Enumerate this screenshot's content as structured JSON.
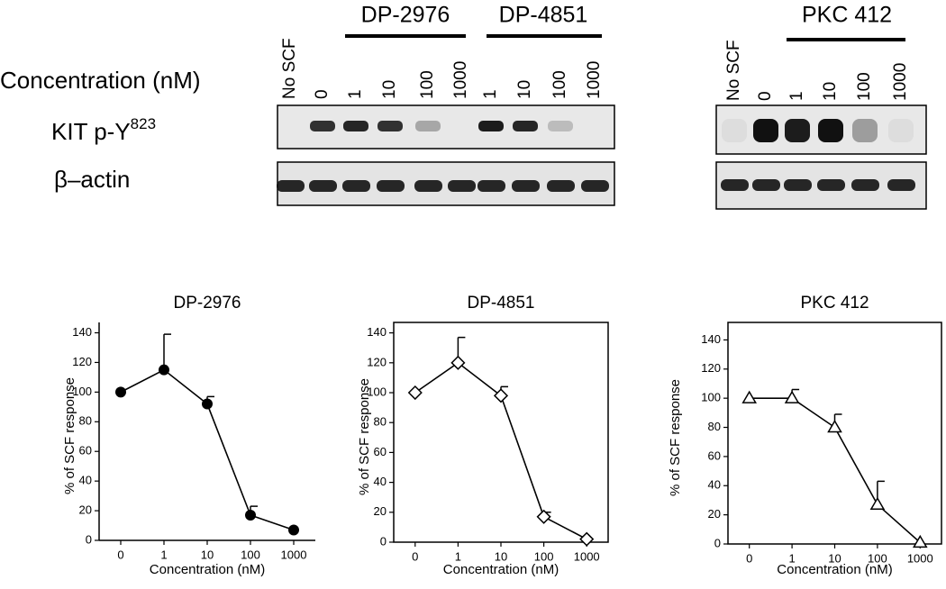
{
  "blot": {
    "headers": [
      "DP-2976",
      "DP-4851",
      "PKC 412"
    ],
    "concentration_label": "Concentration (nM)",
    "kit_label": {
      "text": "KIT p-Y",
      "superscript": "823"
    },
    "actin_label": "β–actin",
    "left_lanes": [
      "No SCF",
      "0",
      "1",
      "10",
      "100",
      "1000",
      "1",
      "10",
      "100",
      "1000"
    ],
    "right_lanes": [
      "No SCF",
      "0",
      "1",
      "10",
      "100",
      "1000"
    ]
  },
  "chart_data": [
    {
      "type": "line",
      "title": "DP-2976",
      "x_label": "Concentration (nM)",
      "y_label": "% of SCF response",
      "categories": [
        "0",
        "1",
        "10",
        "100",
        "1000"
      ],
      "values": [
        100,
        115,
        92,
        17,
        7
      ],
      "errors": [
        null,
        24,
        5,
        6,
        null
      ],
      "marker": "circle-filled",
      "ylim": [
        0,
        147
      ],
      "yticks": [
        0,
        20,
        40,
        60,
        80,
        100,
        120,
        140
      ],
      "frame": false
    },
    {
      "type": "line",
      "title": "DP-4851",
      "x_label": "Concentration (nM)",
      "y_label": "% of SCF response",
      "categories": [
        "0",
        "1",
        "10",
        "100",
        "1000"
      ],
      "values": [
        100,
        120,
        98,
        17,
        2
      ],
      "errors": [
        null,
        17,
        6,
        3,
        null
      ],
      "marker": "diamond-open",
      "ylim": [
        0,
        147
      ],
      "yticks": [
        0,
        20,
        40,
        60,
        80,
        100,
        120,
        140
      ],
      "frame": true
    },
    {
      "type": "line",
      "title": "PKC 412",
      "x_label": "Concentration (nM)",
      "y_label": "% of SCF response",
      "categories": [
        "0",
        "1",
        "10",
        "100",
        "1000"
      ],
      "values": [
        100,
        100,
        80,
        27,
        1
      ],
      "errors": [
        null,
        6,
        9,
        16,
        null
      ],
      "marker": "triangle-open",
      "ylim": [
        0,
        152
      ],
      "yticks": [
        0,
        20,
        40,
        60,
        80,
        100,
        120,
        140
      ],
      "frame": true
    }
  ]
}
